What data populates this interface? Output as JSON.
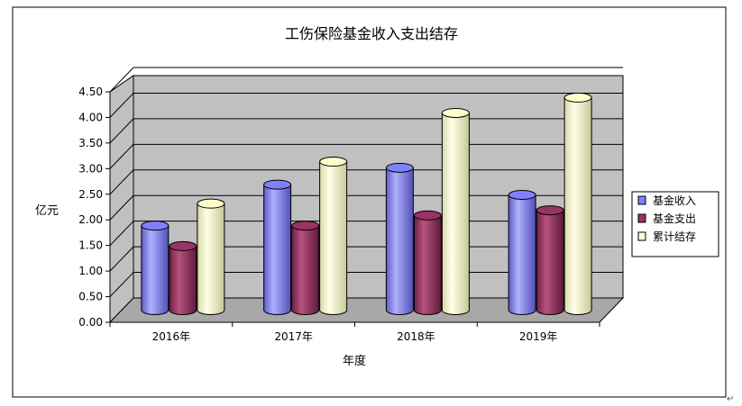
{
  "chart_data": {
    "type": "bar",
    "title": "工伤保险基金收入支出结存",
    "xlabel": "年度",
    "ylabel": "亿元",
    "categories": [
      "2016年",
      "2017年",
      "2018年",
      "2019年"
    ],
    "ylim": [
      0,
      4.5
    ],
    "yticks": [
      "0.00",
      "0.50",
      "1.00",
      "1.50",
      "2.00",
      "2.50",
      "3.00",
      "3.50",
      "4.00",
      "4.50"
    ],
    "grid": true,
    "legend_position": "right",
    "series": [
      {
        "name": "基金收入",
        "color": "#8080FF",
        "values": [
          1.65,
          2.45,
          2.78,
          2.25
        ]
      },
      {
        "name": "基金支出",
        "color": "#993366",
        "values": [
          1.25,
          1.65,
          1.85,
          1.95
        ]
      },
      {
        "name": "累计结存",
        "color": "#FFFFCC",
        "values": [
          2.08,
          2.9,
          3.85,
          4.15
        ]
      }
    ],
    "plot_background": "#C0C0C0"
  }
}
